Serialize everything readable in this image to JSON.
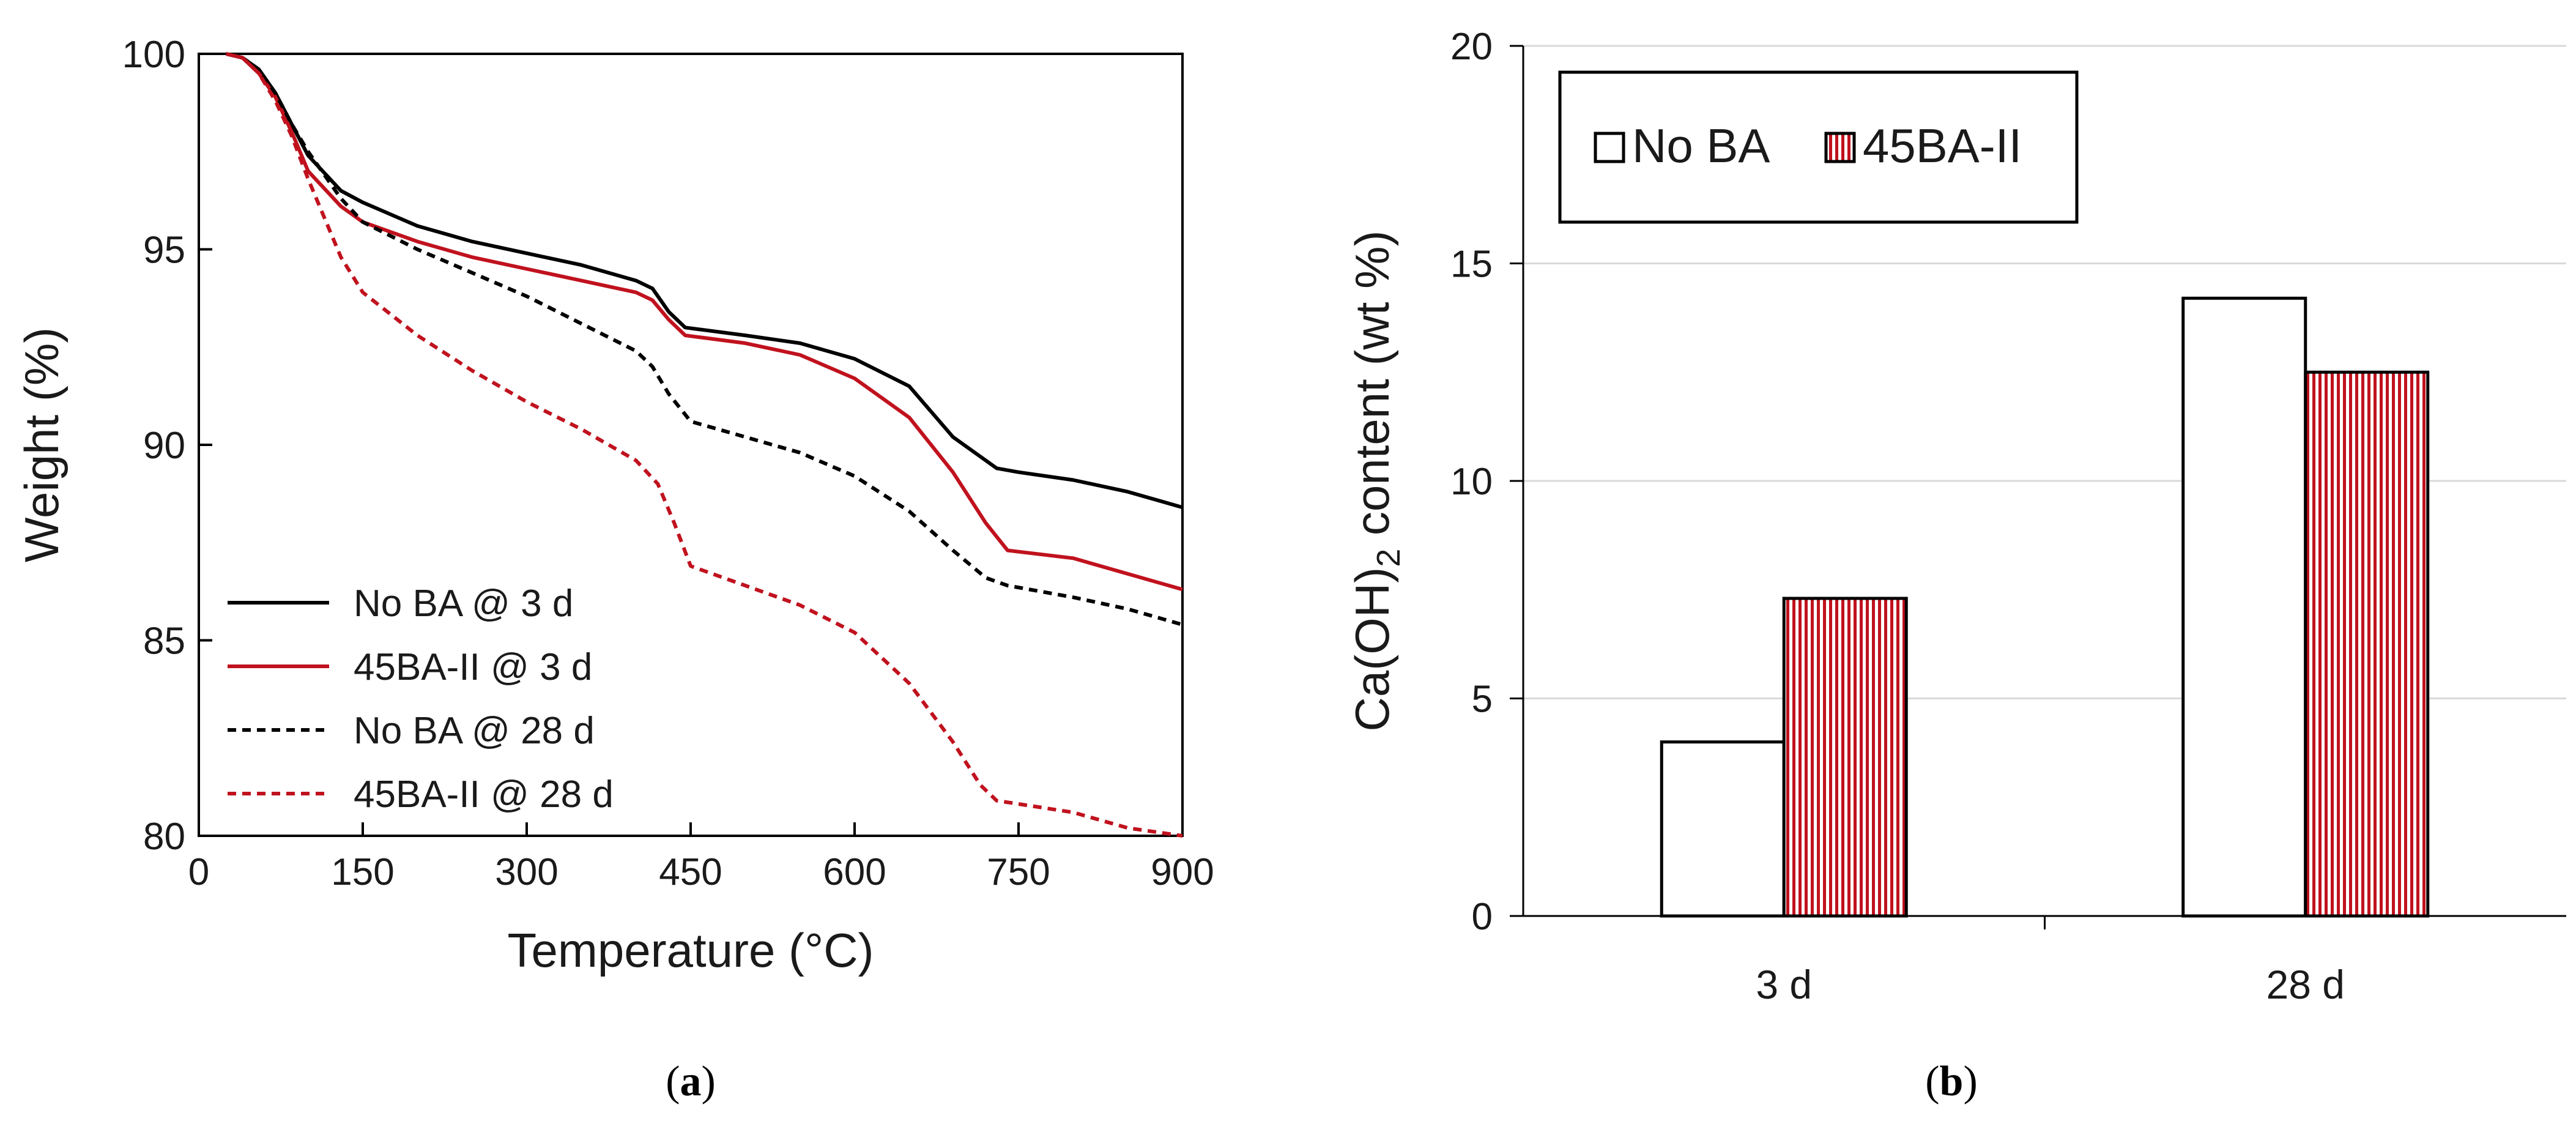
{
  "colors": {
    "no_ba": "#000000",
    "ba_45": "#c0121e",
    "grid": "#d9d9d9",
    "axis": "#000000",
    "text": "#1a1a1a"
  },
  "chart_data": [
    {
      "type": "line",
      "panel_label": "a",
      "title": "",
      "xlabel": "Temperature (°C)",
      "ylabel": "Weight (%)",
      "xlim": [
        0,
        900
      ],
      "ylim": [
        80,
        100
      ],
      "x_ticks": [
        "0",
        "150",
        "300",
        "450",
        "600",
        "750",
        "900"
      ],
      "y_ticks": [
        "80",
        "85",
        "90",
        "95",
        "100"
      ],
      "grid": false,
      "legend_position": "lower-left",
      "series": [
        {
          "name": "No BA @ 3 d",
          "color": "#000000",
          "style": "solid",
          "x": [
            25,
            40,
            55,
            70,
            85,
            100,
            130,
            150,
            200,
            250,
            300,
            350,
            400,
            415,
            430,
            445,
            500,
            550,
            600,
            650,
            690,
            730,
            750,
            800,
            850,
            900
          ],
          "y": [
            100,
            99.9,
            99.6,
            99.0,
            98.2,
            97.4,
            96.5,
            96.2,
            95.6,
            95.2,
            94.9,
            94.6,
            94.2,
            94.0,
            93.4,
            93.0,
            92.8,
            92.6,
            92.2,
            91.5,
            90.2,
            89.4,
            89.3,
            89.1,
            88.8,
            88.4
          ]
        },
        {
          "name": "45BA-II @ 3 d",
          "color": "#c0121e",
          "style": "solid",
          "x": [
            25,
            40,
            55,
            70,
            85,
            100,
            130,
            150,
            200,
            250,
            300,
            350,
            400,
            415,
            430,
            445,
            500,
            550,
            600,
            650,
            690,
            720,
            740,
            800,
            850,
            900
          ],
          "y": [
            100,
            99.9,
            99.5,
            98.9,
            98.0,
            97.0,
            96.1,
            95.7,
            95.2,
            94.8,
            94.5,
            94.2,
            93.9,
            93.7,
            93.2,
            92.8,
            92.6,
            92.3,
            91.7,
            90.7,
            89.3,
            88.0,
            87.3,
            87.1,
            86.7,
            86.3
          ]
        },
        {
          "name": "No BA @ 28 d",
          "color": "#000000",
          "style": "dashed",
          "x": [
            25,
            40,
            55,
            70,
            85,
            100,
            130,
            150,
            200,
            250,
            300,
            350,
            400,
            415,
            430,
            450,
            500,
            550,
            600,
            650,
            690,
            720,
            740,
            800,
            850,
            900
          ],
          "y": [
            100,
            99.9,
            99.6,
            99.0,
            98.2,
            97.5,
            96.3,
            95.7,
            95.0,
            94.4,
            93.8,
            93.1,
            92.4,
            92.0,
            91.3,
            90.6,
            90.2,
            89.8,
            89.2,
            88.3,
            87.3,
            86.6,
            86.4,
            86.1,
            85.8,
            85.4
          ]
        },
        {
          "name": "45BA-II @ 28 d",
          "color": "#c0121e",
          "style": "dashed",
          "x": [
            25,
            40,
            55,
            70,
            85,
            100,
            130,
            150,
            200,
            250,
            300,
            350,
            400,
            420,
            435,
            450,
            500,
            550,
            600,
            650,
            690,
            715,
            730,
            800,
            850,
            900
          ],
          "y": [
            100,
            99.9,
            99.5,
            98.8,
            97.9,
            96.8,
            94.8,
            93.9,
            92.8,
            91.9,
            91.1,
            90.4,
            89.6,
            89.0,
            88.0,
            86.9,
            86.4,
            85.9,
            85.2,
            83.9,
            82.4,
            81.3,
            80.9,
            80.6,
            80.2,
            79.8
          ]
        }
      ]
    },
    {
      "type": "bar",
      "panel_label": "b",
      "title": "",
      "xlabel": "",
      "ylabel_main": "Ca(OH)",
      "ylabel_sub": "2",
      "ylabel_rest": " content (wt %)",
      "categories": [
        "3 d",
        "28 d"
      ],
      "ylim": [
        0,
        20
      ],
      "y_ticks": [
        "0",
        "5",
        "10",
        "15",
        "20"
      ],
      "grid": true,
      "legend_position": "top-left",
      "series": [
        {
          "name": "No BA",
          "values": [
            4.0,
            14.2
          ],
          "fill": "white"
        },
        {
          "name": "45BA-II",
          "values": [
            7.3,
            12.5
          ],
          "fill": "red-vertical-hatch"
        }
      ]
    }
  ]
}
